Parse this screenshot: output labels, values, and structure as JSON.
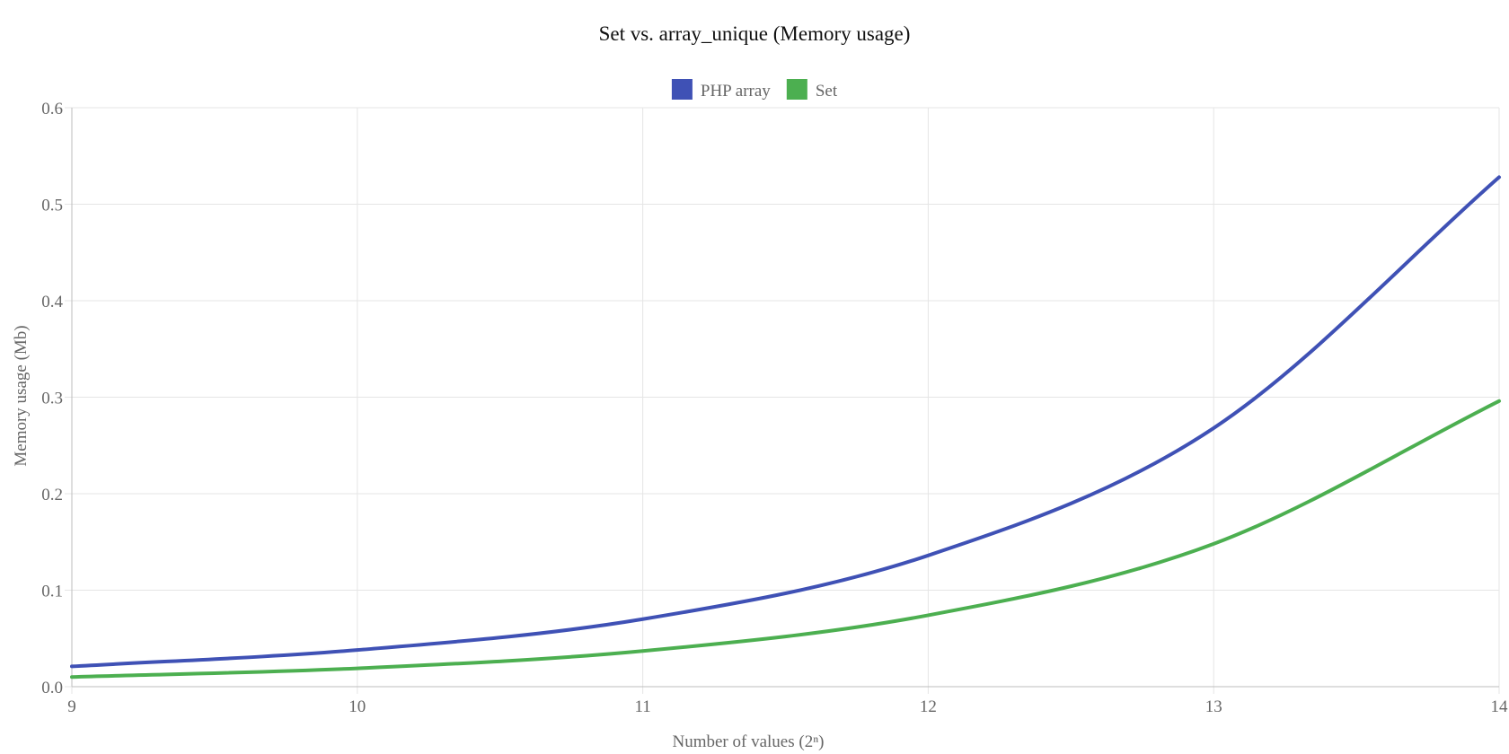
{
  "chart_data": {
    "type": "line",
    "title": "Set vs. array_unique (Memory usage)",
    "xlabel": "Number of values (2ⁿ)",
    "ylabel": "Memory usage (Mb)",
    "x": [
      9,
      10,
      11,
      12,
      13,
      14
    ],
    "xlim": [
      9,
      14
    ],
    "ylim": [
      0,
      0.6
    ],
    "yticks": [
      0.0,
      0.1,
      0.2,
      0.3,
      0.4,
      0.5,
      0.6
    ],
    "ytick_labels": [
      "0.0",
      "0.1",
      "0.2",
      "0.3",
      "0.4",
      "0.5",
      "0.6"
    ],
    "xtick_labels": [
      "9",
      "10",
      "11",
      "12",
      "13",
      "14"
    ],
    "grid": true,
    "legend_position": "top-center",
    "series": [
      {
        "name": "PHP array",
        "color": "#3f51b5",
        "values": [
          0.021,
          0.038,
          0.07,
          0.136,
          0.268,
          0.528
        ]
      },
      {
        "name": "Set",
        "color": "#4caf50",
        "values": [
          0.01,
          0.019,
          0.037,
          0.074,
          0.148,
          0.296
        ]
      }
    ]
  }
}
